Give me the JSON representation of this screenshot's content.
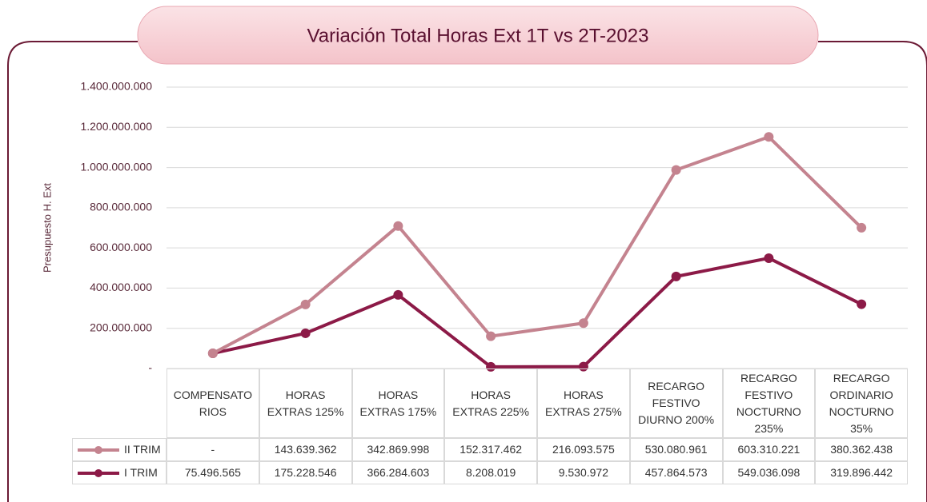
{
  "chart_data": {
    "type": "stacked_line",
    "title": "Variación Total Horas Ext 1T vs 2T-2023",
    "y_label": "Presupuesto H. Ext",
    "categories": [
      "COMPENSATORIOS",
      "HORAS EXTRAS 125%",
      "HORAS EXTRAS 175%",
      "HORAS EXTRAS 225%",
      "HORAS EXTRAS 275%",
      "RECARGO FESTIVO DIURNO 200%",
      "RECARGO FESTIVO NOCTURNO 235%",
      "RECARGO ORDINARIO NOCTURNO 35%"
    ],
    "series": [
      {
        "name": "I TRIM",
        "color": "#8c1a47",
        "values": [
          75496565,
          175228546,
          366284603,
          8208019,
          9530972,
          457864573,
          549036098,
          319896442
        ],
        "value_labels": [
          "75.496.565",
          "175.228.546",
          "366.284.603",
          "8.208.019",
          "9.530.972",
          "457.864.573",
          "549.036.098",
          "319.896.442"
        ]
      },
      {
        "name": "II TRIM",
        "color": "#c4838f",
        "values": [
          0,
          143639362,
          342869998,
          152317462,
          216093575,
          530080961,
          603310221,
          380362438
        ],
        "value_labels": [
          "-",
          "143.639.362",
          "342.869.998",
          "152.317.462",
          "216.093.575",
          "530.080.961",
          "603.310.221",
          "380.362.438"
        ]
      }
    ],
    "ylim": [
      0,
      1400000000
    ],
    "yticks": [
      {
        "value": 0,
        "label": "-"
      },
      {
        "value": 200000000,
        "label": "200.000.000"
      },
      {
        "value": 400000000,
        "label": "400.000.000"
      },
      {
        "value": 600000000,
        "label": "600.000.000"
      },
      {
        "value": 800000000,
        "label": "800.000.000"
      },
      {
        "value": 1000000000,
        "label": "1.000.000.000"
      },
      {
        "value": 1200000000,
        "label": "1.200.000.000"
      },
      {
        "value": 1400000000,
        "label": "1.400.000.000"
      }
    ],
    "grid": true
  }
}
